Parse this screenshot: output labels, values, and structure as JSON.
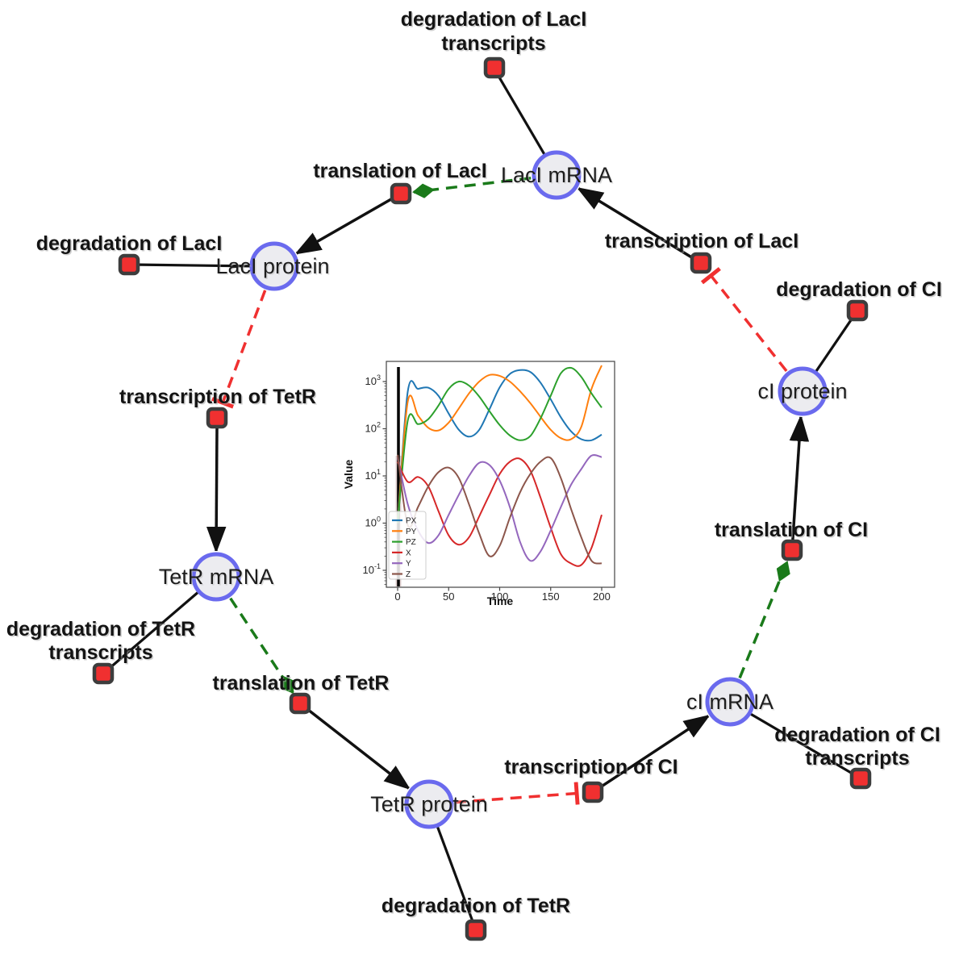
{
  "nodes": {
    "laci_mrna": "LacI mRNA",
    "laci_protein": "LacI protein",
    "ci_protein": "cI protein",
    "tetr_mrna": "TetR mRNA",
    "tetr_protein": "TetR protein",
    "ci_mrna": "cI mRNA"
  },
  "reactions": {
    "deg_laci_transcripts_l1": "degradation of LacI",
    "deg_laci_transcripts_l2": "transcripts",
    "translation_laci": "translation of LacI",
    "deg_laci": "degradation of LacI",
    "transcription_laci": "transcription of LacI",
    "deg_ci": "degradation of CI",
    "transcription_tetr": "transcription of TetR",
    "deg_tetr_transcripts_l1": "degradation of TetR",
    "deg_tetr_transcripts_l2": "transcripts",
    "translation_tetr": "translation of TetR",
    "deg_tetr": "degradation of TetR",
    "transcription_ci": "transcription of CI",
    "deg_ci_transcripts_l1": "degradation of CI",
    "deg_ci_transcripts_l2": "transcripts",
    "translation_ci": "translation of CI"
  },
  "style": {
    "species_fill": "#ececf0",
    "species_stroke": "#6a6aee",
    "reaction_fill": "#f03030",
    "reaction_stroke": "#3d3d3d",
    "edge_color": "#111111",
    "activation_color": "#1a7a1a",
    "inhibition_color": "#f03030"
  },
  "chart_data": {
    "type": "line",
    "title": "",
    "xlabel": "Time",
    "ylabel": "Value",
    "yscale": "log",
    "xticks": [
      0,
      50,
      100,
      150,
      200
    ],
    "ytick_exponents": [
      3,
      2,
      1,
      0,
      -1
    ],
    "xlim": [
      -10,
      212
    ],
    "ylim": [
      0.05,
      2800
    ],
    "grid": false,
    "legend_position": "lower left",
    "x": [
      0,
      10,
      20,
      30,
      40,
      50,
      60,
      70,
      80,
      90,
      100,
      110,
      120,
      130,
      140,
      150,
      160,
      170,
      180,
      190,
      200
    ],
    "series": [
      {
        "name": "PX",
        "color": "#1f77b4",
        "values": [
          1,
          620,
          700,
          740,
          500,
          210,
          95,
          68,
          95,
          260,
          750,
          1450,
          1750,
          1600,
          950,
          420,
          175,
          88,
          60,
          57,
          75
        ]
      },
      {
        "name": "PY",
        "color": "#ff7f0e",
        "values": [
          1,
          380,
          190,
          105,
          92,
          135,
          270,
          560,
          1000,
          1380,
          1320,
          1000,
          620,
          350,
          180,
          95,
          63,
          60,
          110,
          700,
          2200
        ]
      },
      {
        "name": "PZ",
        "color": "#2ca02c",
        "values": [
          1,
          150,
          125,
          160,
          310,
          700,
          1000,
          820,
          480,
          235,
          120,
          72,
          57,
          70,
          165,
          500,
          1500,
          1950,
          1250,
          560,
          280
        ]
      },
      {
        "name": "X",
        "color": "#d62728",
        "values": [
          20,
          7.5,
          9.5,
          6,
          1.8,
          0.55,
          0.35,
          0.5,
          1.4,
          4,
          11,
          20,
          23,
          13,
          3.5,
          0.8,
          0.22,
          0.14,
          0.13,
          0.3,
          1.5
        ]
      },
      {
        "name": "Y",
        "color": "#9467bd",
        "values": [
          25,
          2.5,
          0.7,
          0.38,
          0.55,
          1.5,
          4,
          10,
          19,
          17,
          8,
          2.2,
          0.4,
          0.16,
          0.25,
          0.7,
          2.2,
          6.5,
          14,
          27,
          25
        ]
      },
      {
        "name": "Z",
        "color": "#8c564b",
        "values": [
          28,
          0.9,
          2.2,
          6,
          12,
          15,
          9,
          2.5,
          0.6,
          0.2,
          0.33,
          1.3,
          4.5,
          11,
          20,
          24,
          9,
          2,
          0.5,
          0.16,
          0.14
        ]
      }
    ]
  }
}
